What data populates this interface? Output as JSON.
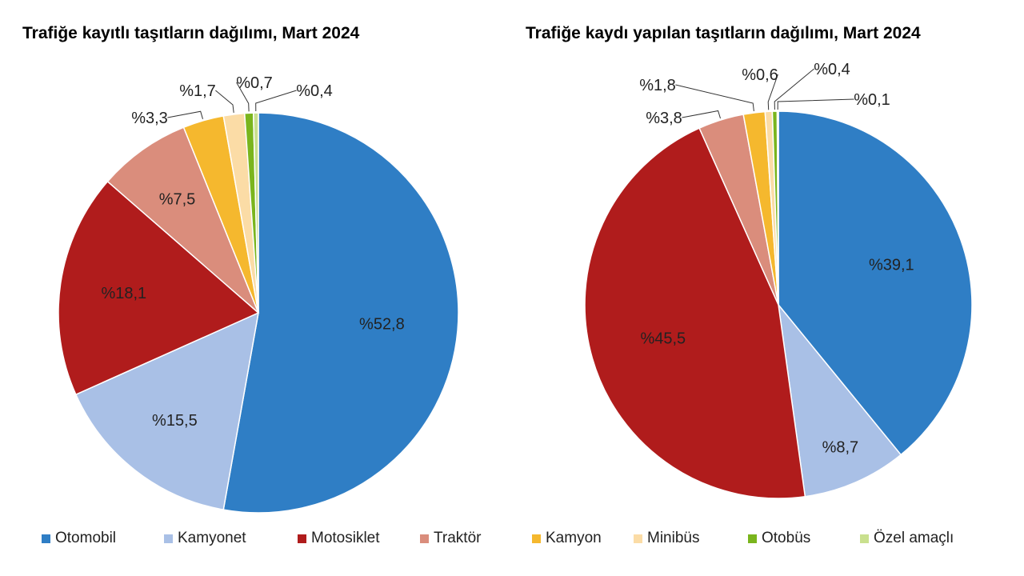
{
  "chart_data": [
    {
      "type": "pie",
      "title": "Trafiğe kayıtlı taşıtların dağılımı, Mart 2024",
      "categories": [
        "Otomobil",
        "Kamyonet",
        "Motosiklet",
        "Traktör",
        "Kamyon",
        "Minibüs",
        "Otobüs",
        "Özel amaçlı"
      ],
      "values": [
        52.8,
        15.5,
        18.1,
        7.5,
        3.3,
        1.7,
        0.7,
        0.4
      ],
      "labels": [
        "%52,8",
        "%15,5",
        "%18,1",
        "%7,5",
        "%3,3",
        "%1,7",
        "%0,7",
        "%0,4"
      ],
      "start": "12 o'clock",
      "direction": "clockwise"
    },
    {
      "type": "pie",
      "title": "Trafiğe kaydı yapılan taşıtların dağılımı, Mart 2024",
      "categories": [
        "Otomobil",
        "Kamyonet",
        "Motosiklet",
        "Traktör",
        "Kamyon",
        "Minibüs",
        "Otobüs",
        "Özel amaçlı"
      ],
      "values": [
        39.1,
        8.7,
        45.5,
        3.8,
        1.8,
        0.6,
        0.4,
        0.1
      ],
      "labels": [
        "%39,1",
        "%8,7",
        "%45,5",
        "%3,8",
        "%1,8",
        "%0,6",
        "%0,4",
        "%0,1"
      ],
      "start": "12 o'clock",
      "direction": "clockwise"
    }
  ],
  "legend": {
    "placement": "bottom",
    "items": [
      "Otomobil",
      "Kamyonet",
      "Motosiklet",
      "Traktör",
      "Kamyon",
      "Minibüs",
      "Otobüs",
      "Özel amaçlı"
    ]
  },
  "colors": {
    "Otomobil": "#2f7ec5",
    "Kamyonet": "#a9c0e6",
    "Motosiklet": "#b01c1c",
    "Traktör": "#da8d7c",
    "Kamyon": "#f5b82e",
    "Minibüs": "#fbdca6",
    "Otobüs": "#7ab51d",
    "Özel amaçlı": "#c9e08e",
    "text": "#222222"
  }
}
